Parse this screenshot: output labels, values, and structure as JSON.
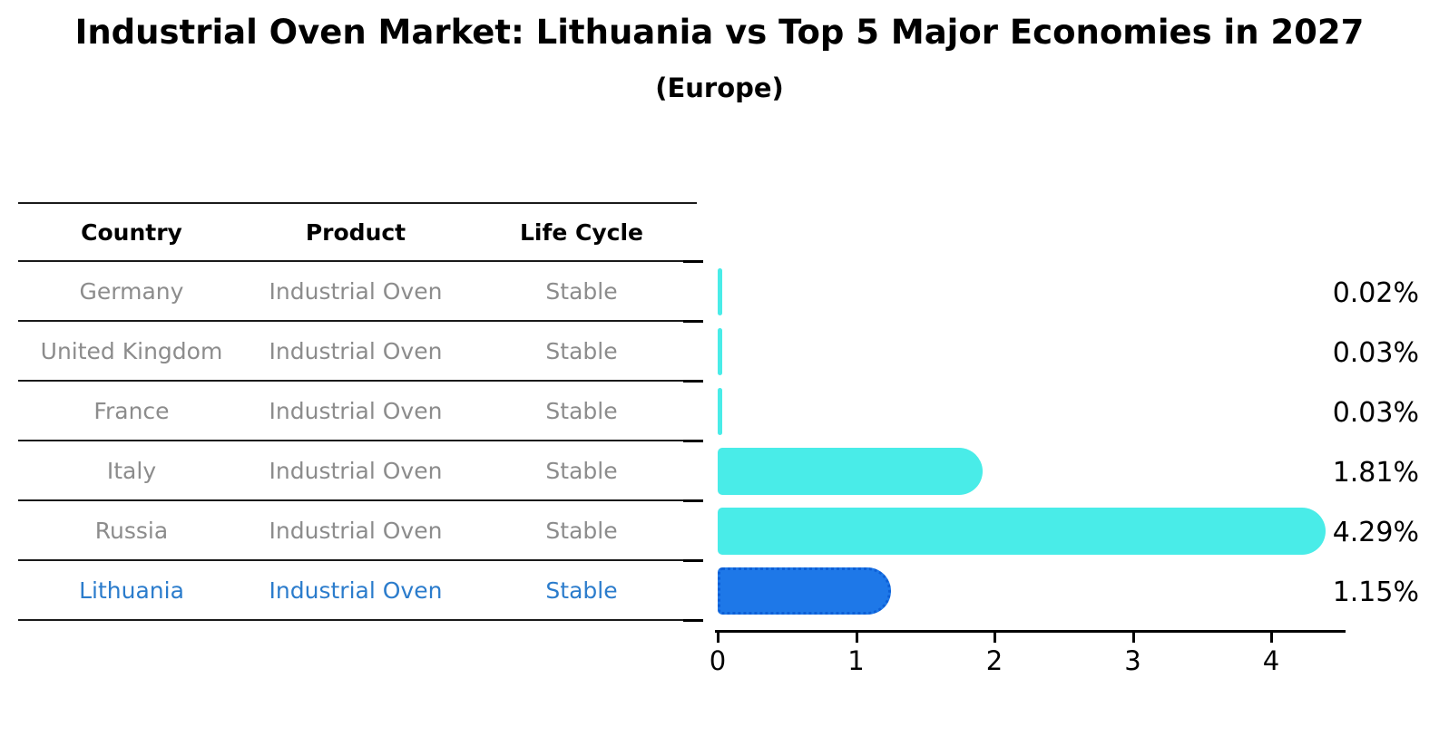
{
  "title": "Industrial Oven Market: Lithuania vs Top 5 Major Economies in 2027",
  "subtitle": "(Europe)",
  "table": {
    "headers": [
      "Country",
      "Product",
      "Life Cycle"
    ]
  },
  "rows": [
    {
      "country": "Germany",
      "product": "Industrial Oven",
      "life_cycle": "Stable",
      "value": 0.02,
      "label": "0.02%",
      "highlight": false
    },
    {
      "country": "United Kingdom",
      "product": "Industrial Oven",
      "life_cycle": "Stable",
      "value": 0.03,
      "label": "0.03%",
      "highlight": false
    },
    {
      "country": "France",
      "product": "Industrial Oven",
      "life_cycle": "Stable",
      "value": 0.03,
      "label": "0.03%",
      "highlight": false
    },
    {
      "country": "Italy",
      "product": "Industrial Oven",
      "life_cycle": "Stable",
      "value": 1.81,
      "label": "1.81%",
      "highlight": false
    },
    {
      "country": "Russia",
      "product": "Industrial Oven",
      "life_cycle": "Stable",
      "value": 4.29,
      "label": "4.29%",
      "highlight": false
    },
    {
      "country": "Lithuania",
      "product": "Industrial Oven",
      "life_cycle": "Stable",
      "value": 1.15,
      "label": "1.15%",
      "highlight": true
    }
  ],
  "chart_data": {
    "type": "bar",
    "orientation": "horizontal",
    "title": "Industrial Oven Market: Lithuania vs Top 5 Major Economies in 2027",
    "subtitle": "(Europe)",
    "categories": [
      "Germany",
      "United Kingdom",
      "France",
      "Italy",
      "Russia",
      "Lithuania"
    ],
    "values": [
      0.02,
      0.03,
      0.03,
      1.81,
      4.29,
      1.15
    ],
    "value_labels": [
      "0.02%",
      "0.03%",
      "0.03%",
      "1.81%",
      "4.29%",
      "1.15%"
    ],
    "xlabel": "",
    "ylabel": "",
    "xlim": [
      0,
      4.5
    ],
    "x_ticks": [
      "0",
      "1",
      "2",
      "3",
      "4"
    ],
    "grid": false,
    "legend": false,
    "colors": {
      "bar_default": "#49ece8",
      "bar_highlight": "#1e78e8",
      "highlight_text": "#2b7ccc",
      "table_text": "#8c8c8c",
      "axis": "#000000"
    }
  }
}
